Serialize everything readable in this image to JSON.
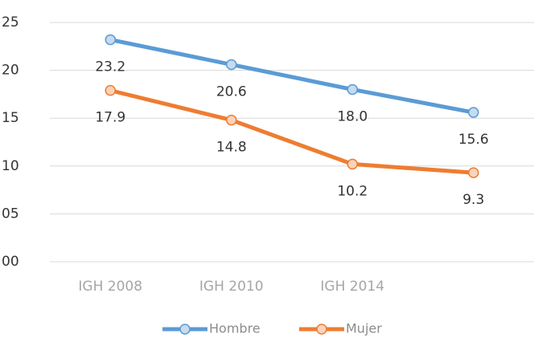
{
  "chart_data": {
    "type": "line",
    "categories": [
      "IGH 2008",
      "IGH 2010",
      "IGH 2014",
      null
    ],
    "series": [
      {
        "name": "Hombre",
        "color": "#5b9bd5",
        "values": [
          23.2,
          20.6,
          18.0,
          15.6
        ],
        "value_labels": [
          "23.2",
          "20.6",
          "18.0",
          "15.6"
        ]
      },
      {
        "name": "Mujer",
        "color": "#ed7d31",
        "values": [
          17.9,
          14.8,
          10.2,
          9.3
        ],
        "value_labels": [
          "17.9",
          "14.8",
          "10.2",
          "9.3"
        ]
      }
    ],
    "ylim": [
      0,
      25
    ],
    "yticks": [
      {
        "value": 0,
        "label": "00"
      },
      {
        "value": 5,
        "label": "05"
      },
      10,
      15,
      20,
      25
    ],
    "grid": true,
    "legend": "bottom"
  }
}
